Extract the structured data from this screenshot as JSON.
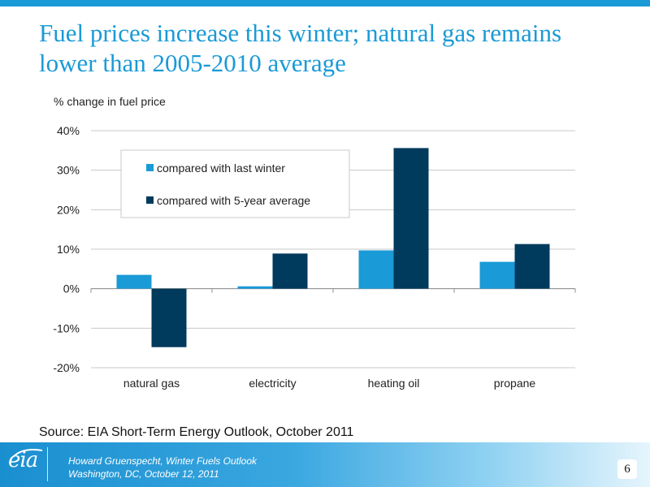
{
  "slide": {
    "title": "Fuel prices increase this winter; natural gas remains lower than 2005-2010 average",
    "source": "Source:  EIA Short-Term Energy Outlook, October 2011",
    "page_number": "6"
  },
  "footer": {
    "logo_text": "eia",
    "line1": "Howard Gruenspecht, Winter Fuels Outlook",
    "line2": "Washington, DC, October 12, 2011"
  },
  "chart_data": {
    "type": "bar",
    "ylabel": "% change in fuel price",
    "categories": [
      "natural gas",
      "electricity",
      "heating oil",
      "propane"
    ],
    "series": [
      {
        "name": "compared with last winter",
        "values": [
          3.5,
          0.6,
          9.7,
          6.8
        ],
        "color": "#1a9ad6"
      },
      {
        "name": "compared with 5-year average",
        "values": [
          -14.8,
          8.9,
          35.6,
          11.3
        ],
        "color": "#003a5c"
      }
    ],
    "ylim": [
      -20,
      40
    ],
    "yticks": [
      40,
      30,
      20,
      10,
      0,
      -10,
      -20
    ],
    "ytick_labels": [
      "40%",
      "30%",
      "20%",
      "10%",
      "0%",
      "-10%",
      "-20%"
    ],
    "grid": true,
    "legend_position": "top-left"
  }
}
